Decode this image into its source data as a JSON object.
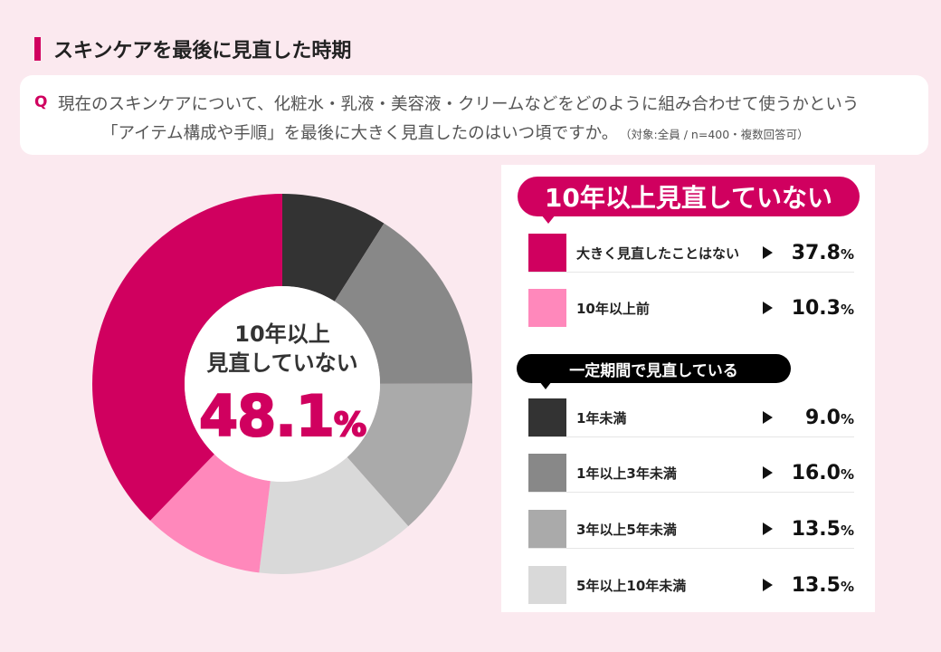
{
  "page": {
    "title": "スキンケアを最後に見直した時期",
    "accent_color": "#d0005f",
    "background_color": "#fbe9ef"
  },
  "question": {
    "mark": "Q",
    "line1": "現在のスキンケアについて、化粧水・乳液・美容液・クリームなどをどのように組み合わせて使うかという",
    "line2": "「アイテム構成や手順」を最後に大きく見直したのはいつ頃ですか。",
    "note": "（対象:全員 / n=400・複数回答可）"
  },
  "center": {
    "line1": "10年以上",
    "line2": "見直していない",
    "value": "48.1",
    "unit": "%"
  },
  "groups": {
    "not_reviewed": "10年以上見直していない",
    "reviewed": "一定期間で見直している"
  },
  "chart_data": {
    "type": "pie",
    "unit": "%",
    "start_angle_deg": 0,
    "direction": "clockwise",
    "slices": [
      {
        "label": "1年未満",
        "value": 9.0,
        "value_text": "9.0",
        "color": "#333333",
        "group": "reviewed"
      },
      {
        "label": "1年以上3年未満",
        "value": 16.0,
        "value_text": "16.0",
        "color": "#888888",
        "group": "reviewed"
      },
      {
        "label": "3年以上5年未満",
        "value": 13.5,
        "value_text": "13.5",
        "color": "#aaaaaa",
        "group": "reviewed"
      },
      {
        "label": "5年以上10年未満",
        "value": 13.5,
        "value_text": "13.5",
        "color": "#d9d9d9",
        "group": "reviewed"
      },
      {
        "label": "10年以上前",
        "value": 10.3,
        "value_text": "10.3",
        "color": "#ff88bb",
        "group": "not_reviewed"
      },
      {
        "label": "大きく見直したことはない",
        "value": 37.8,
        "value_text": "37.8",
        "color": "#d0005f",
        "group": "not_reviewed"
      }
    ]
  },
  "legend_order": [
    5,
    4,
    0,
    1,
    2,
    3
  ]
}
